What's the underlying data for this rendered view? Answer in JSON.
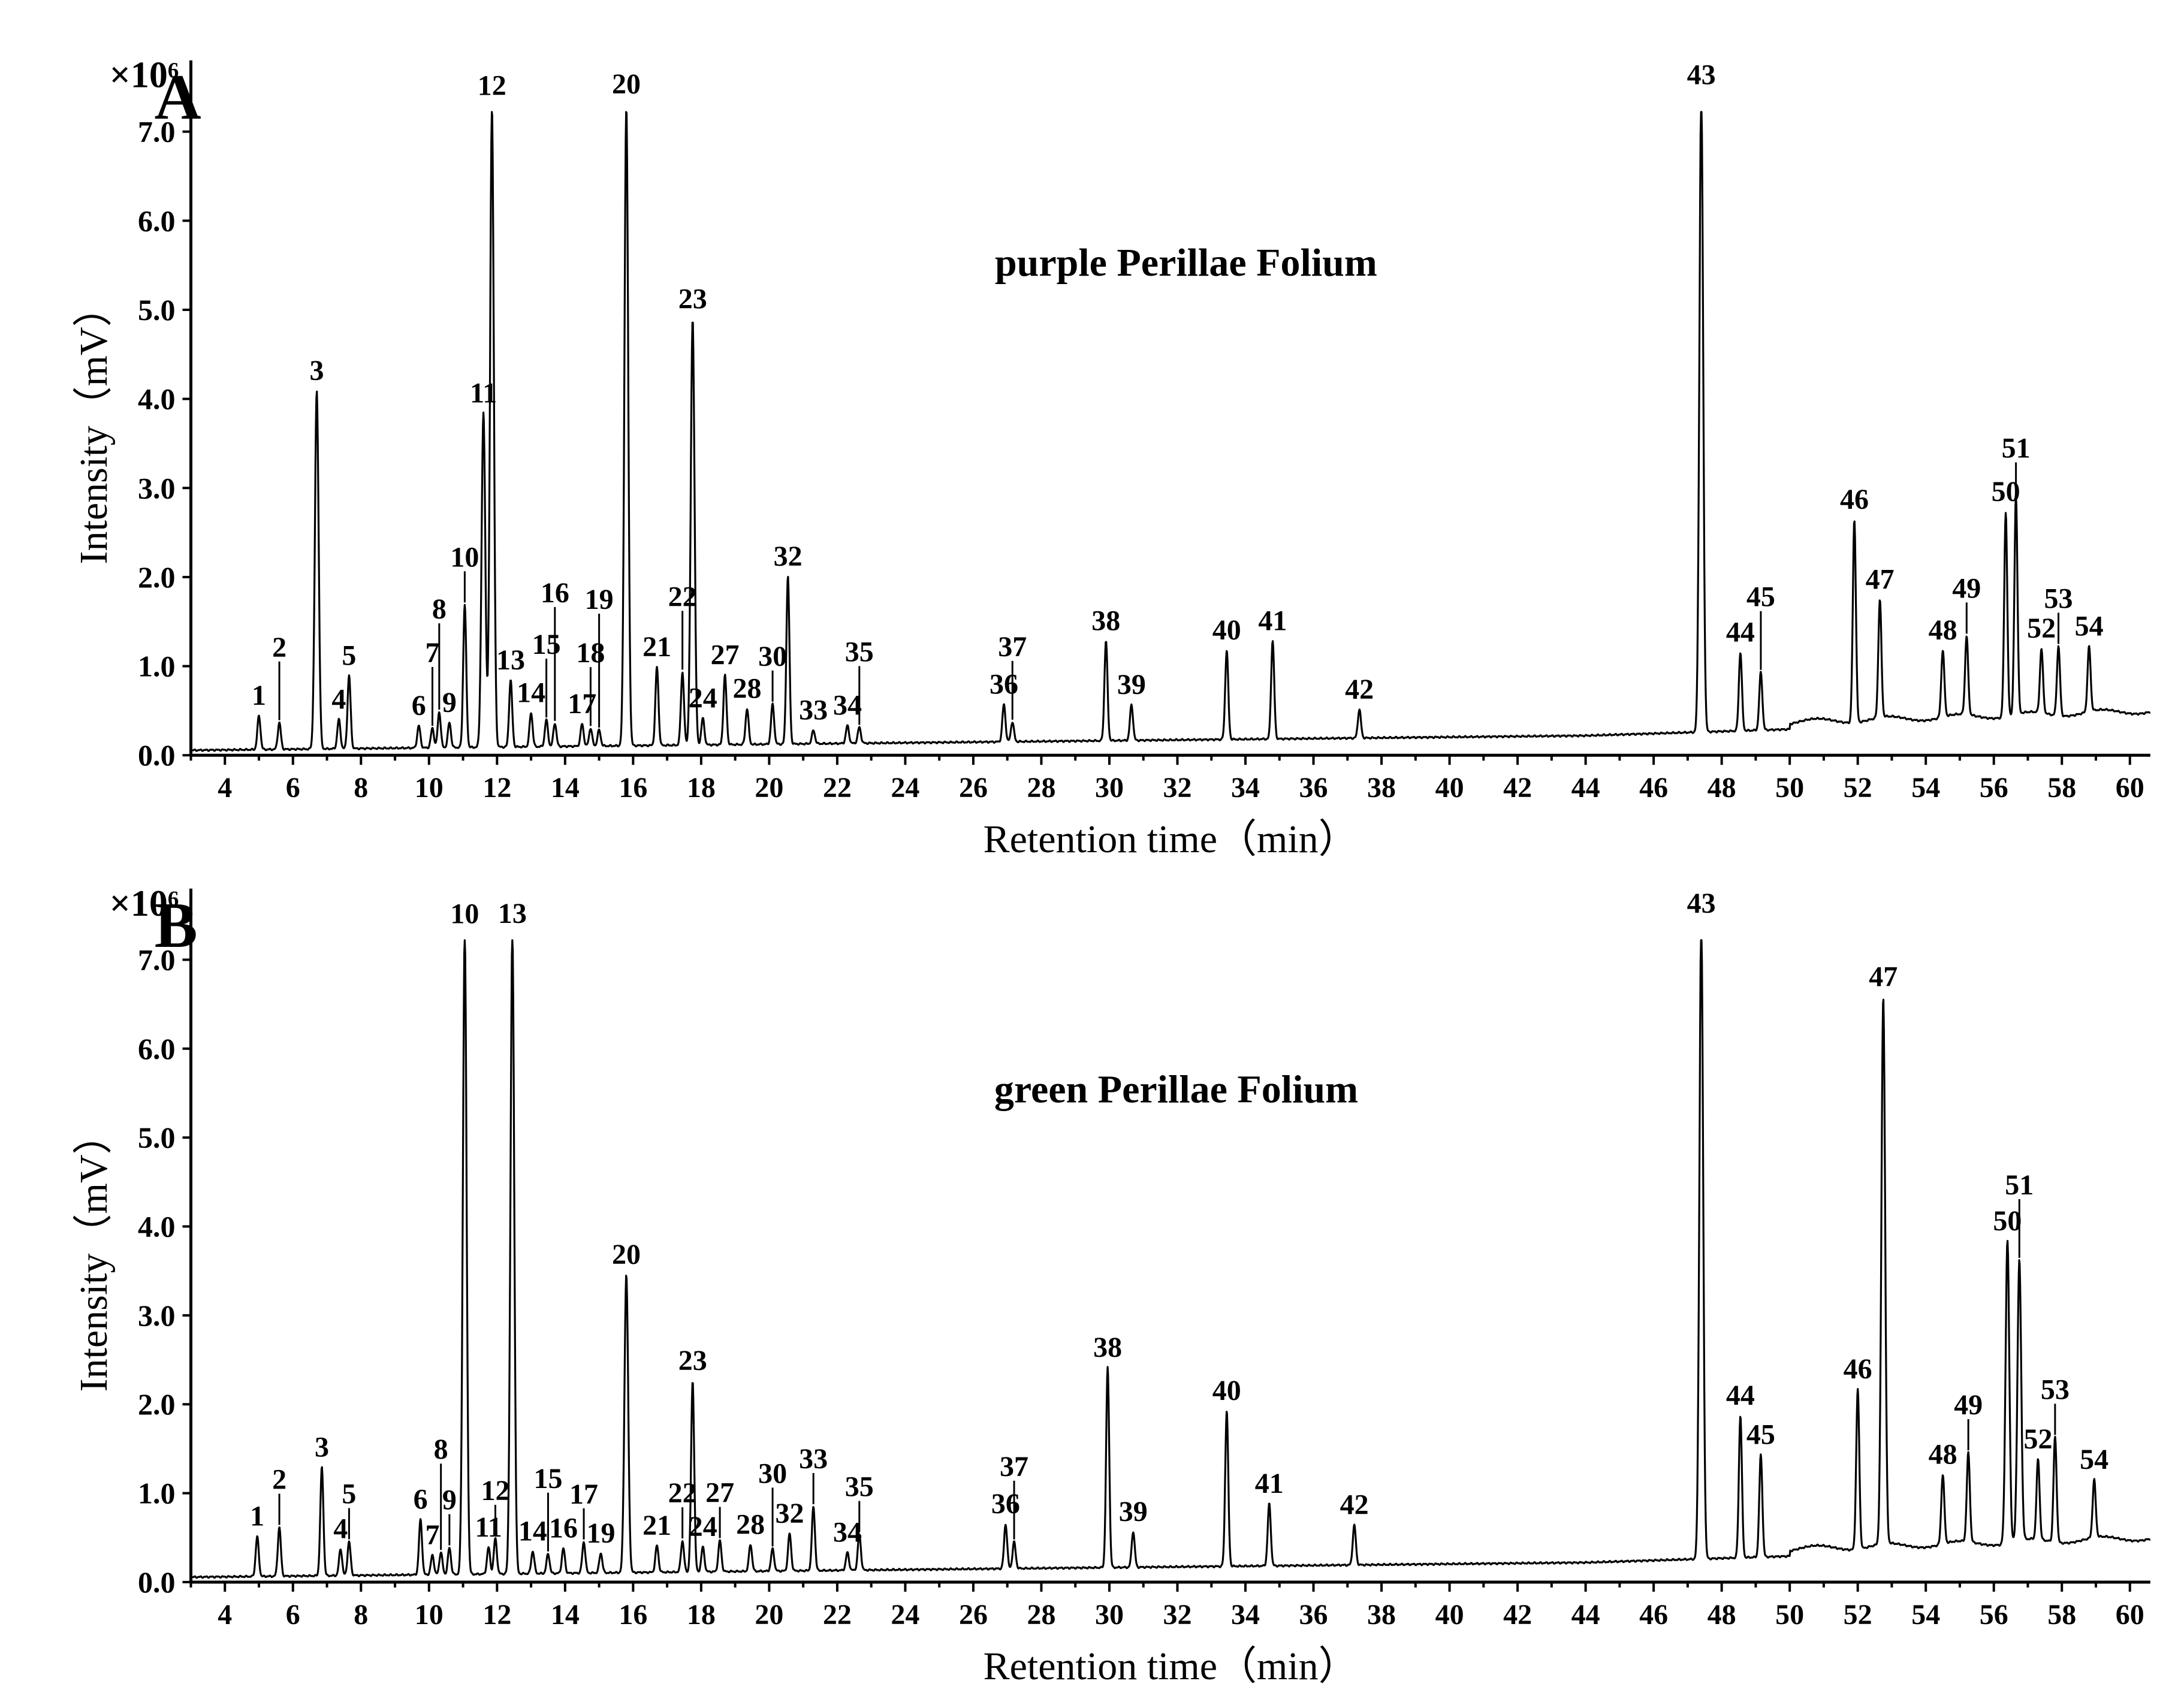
{
  "chart_data": [
    {
      "type": "line",
      "panel": "A",
      "title": "purple Perillae Folium",
      "xlabel": "Retention time（min）",
      "ylabel": "Intensity（mV）",
      "y_multiplier": "×10⁶",
      "xlim": [
        3,
        60.6
      ],
      "ylim": [
        0,
        7.8
      ],
      "xticks": [
        4,
        6,
        8,
        10,
        12,
        14,
        16,
        18,
        20,
        22,
        24,
        26,
        28,
        30,
        32,
        34,
        36,
        38,
        40,
        42,
        44,
        46,
        48,
        50,
        52,
        54,
        56,
        58,
        60
      ],
      "yticks": [
        "0.0",
        "1.0",
        "2.0",
        "3.0",
        "4.0",
        "5.0",
        "6.0",
        "7.0"
      ],
      "peaks": [
        {
          "label": "1",
          "x": 5.0,
          "y": 0.38
        },
        {
          "label": "2",
          "x": 5.6,
          "y": 0.3
        },
        {
          "label": "3",
          "x": 6.7,
          "y": 4.02
        },
        {
          "label": "4",
          "x": 7.35,
          "y": 0.33
        },
        {
          "label": "5",
          "x": 7.65,
          "y": 0.82
        },
        {
          "label": "6",
          "x": 9.7,
          "y": 0.25
        },
        {
          "label": "7",
          "x": 10.1,
          "y": 0.22
        },
        {
          "label": "8",
          "x": 10.3,
          "y": 0.4
        },
        {
          "label": "9",
          "x": 10.6,
          "y": 0.28
        },
        {
          "label": "10",
          "x": 11.05,
          "y": 1.6
        },
        {
          "label": "11",
          "x": 11.6,
          "y": 3.75
        },
        {
          "label": "12",
          "x": 11.85,
          "y": 7.2
        },
        {
          "label": "13",
          "x": 12.4,
          "y": 0.75
        },
        {
          "label": "14",
          "x": 13.0,
          "y": 0.38
        },
        {
          "label": "15",
          "x": 13.45,
          "y": 0.3
        },
        {
          "label": "16",
          "x": 13.7,
          "y": 0.26
        },
        {
          "label": "17",
          "x": 14.5,
          "y": 0.25
        },
        {
          "label": "18",
          "x": 14.75,
          "y": 0.2
        },
        {
          "label": "19",
          "x": 15.0,
          "y": 0.18
        },
        {
          "label": "20",
          "x": 15.8,
          "y": 7.2
        },
        {
          "label": "21",
          "x": 16.7,
          "y": 0.88
        },
        {
          "label": "22",
          "x": 17.45,
          "y": 0.82
        },
        {
          "label": "23",
          "x": 17.75,
          "y": 4.78
        },
        {
          "label": "24",
          "x": 18.05,
          "y": 0.3
        },
        {
          "label": "27",
          "x": 18.7,
          "y": 0.78
        },
        {
          "label": "28",
          "x": 19.35,
          "y": 0.4
        },
        {
          "label": "30",
          "x": 20.1,
          "y": 0.45
        },
        {
          "label": "32",
          "x": 20.55,
          "y": 1.88
        },
        {
          "label": "33",
          "x": 21.3,
          "y": 0.15
        },
        {
          "label": "34",
          "x": 22.3,
          "y": 0.2
        },
        {
          "label": "35",
          "x": 22.65,
          "y": 0.18
        },
        {
          "label": "36",
          "x": 26.9,
          "y": 0.42
        },
        {
          "label": "37",
          "x": 27.15,
          "y": 0.22
        },
        {
          "label": "38",
          "x": 29.9,
          "y": 1.12
        },
        {
          "label": "39",
          "x": 30.65,
          "y": 0.4
        },
        {
          "label": "40",
          "x": 33.45,
          "y": 1.0
        },
        {
          "label": "41",
          "x": 34.8,
          "y": 1.1
        },
        {
          "label": "42",
          "x": 37.35,
          "y": 0.32
        },
        {
          "label": "43",
          "x": 47.4,
          "y": 7.2
        },
        {
          "label": "44",
          "x": 48.55,
          "y": 0.88
        },
        {
          "label": "45",
          "x": 49.15,
          "y": 0.65
        },
        {
          "label": "46",
          "x": 51.9,
          "y": 2.28
        },
        {
          "label": "47",
          "x": 52.65,
          "y": 1.32
        },
        {
          "label": "48",
          "x": 54.5,
          "y": 0.75
        },
        {
          "label": "49",
          "x": 55.2,
          "y": 0.88
        },
        {
          "label": "50",
          "x": 56.35,
          "y": 2.3
        },
        {
          "label": "51",
          "x": 56.65,
          "y": 2.45
        },
        {
          "label": "52",
          "x": 57.4,
          "y": 0.72
        },
        {
          "label": "53",
          "x": 57.9,
          "y": 0.78
        },
        {
          "label": "54",
          "x": 58.8,
          "y": 0.73
        }
      ]
    },
    {
      "type": "line",
      "panel": "B",
      "title": "green Perillae Folium",
      "xlabel": "Retention time（min）",
      "ylabel": "Intensity（mV）",
      "y_multiplier": "×10⁶",
      "xlim": [
        3,
        60.6
      ],
      "ylim": [
        0,
        7.8
      ],
      "xticks": [
        4,
        6,
        8,
        10,
        12,
        14,
        16,
        18,
        20,
        22,
        24,
        26,
        28,
        30,
        32,
        34,
        36,
        38,
        40,
        42,
        44,
        46,
        48,
        50,
        52,
        54,
        56,
        58,
        60
      ],
      "yticks": [
        "0.0",
        "1.0",
        "2.0",
        "3.0",
        "4.0",
        "5.0",
        "6.0",
        "7.0"
      ],
      "peaks": [
        {
          "label": "1",
          "x": 4.95,
          "y": 0.45
        },
        {
          "label": "2",
          "x": 5.6,
          "y": 0.55
        },
        {
          "label": "3",
          "x": 6.85,
          "y": 1.22
        },
        {
          "label": "4",
          "x": 7.4,
          "y": 0.3
        },
        {
          "label": "5",
          "x": 7.65,
          "y": 0.38
        },
        {
          "label": "6",
          "x": 9.75,
          "y": 0.62
        },
        {
          "label": "7",
          "x": 10.1,
          "y": 0.22
        },
        {
          "label": "8",
          "x": 10.35,
          "y": 0.25
        },
        {
          "label": "9",
          "x": 10.6,
          "y": 0.3
        },
        {
          "label": "10",
          "x": 11.05,
          "y": 7.2
        },
        {
          "label": "11",
          "x": 11.75,
          "y": 0.3
        },
        {
          "label": "12",
          "x": 11.95,
          "y": 0.4
        },
        {
          "label": "13",
          "x": 12.45,
          "y": 7.2
        },
        {
          "label": "14",
          "x": 13.05,
          "y": 0.25
        },
        {
          "label": "15",
          "x": 13.5,
          "y": 0.22
        },
        {
          "label": "16",
          "x": 13.95,
          "y": 0.28
        },
        {
          "label": "17",
          "x": 14.55,
          "y": 0.35
        },
        {
          "label": "19",
          "x": 15.05,
          "y": 0.22
        },
        {
          "label": "20",
          "x": 15.8,
          "y": 3.35
        },
        {
          "label": "21",
          "x": 16.7,
          "y": 0.3
        },
        {
          "label": "22",
          "x": 17.45,
          "y": 0.35
        },
        {
          "label": "23",
          "x": 17.75,
          "y": 2.15
        },
        {
          "label": "24",
          "x": 18.05,
          "y": 0.28
        },
        {
          "label": "27",
          "x": 18.55,
          "y": 0.35
        },
        {
          "label": "28",
          "x": 19.45,
          "y": 0.3
        },
        {
          "label": "30",
          "x": 20.1,
          "y": 0.25
        },
        {
          "label": "32",
          "x": 20.6,
          "y": 0.42
        },
        {
          "label": "33",
          "x": 21.3,
          "y": 0.72
        },
        {
          "label": "34",
          "x": 22.3,
          "y": 0.2
        },
        {
          "label": "35",
          "x": 22.65,
          "y": 0.4
        },
        {
          "label": "36",
          "x": 26.95,
          "y": 0.5
        },
        {
          "label": "37",
          "x": 27.2,
          "y": 0.3
        },
        {
          "label": "38",
          "x": 29.95,
          "y": 2.25
        },
        {
          "label": "39",
          "x": 30.7,
          "y": 0.4
        },
        {
          "label": "40",
          "x": 33.45,
          "y": 1.75
        },
        {
          "label": "41",
          "x": 34.7,
          "y": 0.7
        },
        {
          "label": "42",
          "x": 37.2,
          "y": 0.45
        },
        {
          "label": "43",
          "x": 47.4,
          "y": 7.2
        },
        {
          "label": "44",
          "x": 48.55,
          "y": 1.6
        },
        {
          "label": "45",
          "x": 49.15,
          "y": 1.15
        },
        {
          "label": "46",
          "x": 52.0,
          "y": 1.8
        },
        {
          "label": "47",
          "x": 52.75,
          "y": 6.15
        },
        {
          "label": "48",
          "x": 54.5,
          "y": 0.78
        },
        {
          "label": "49",
          "x": 55.25,
          "y": 1.0
        },
        {
          "label": "50",
          "x": 56.4,
          "y": 3.4
        },
        {
          "label": "51",
          "x": 56.75,
          "y": 3.15
        },
        {
          "label": "52",
          "x": 57.3,
          "y": 0.9
        },
        {
          "label": "53",
          "x": 57.8,
          "y": 1.18
        },
        {
          "label": "54",
          "x": 58.95,
          "y": 0.65
        }
      ]
    }
  ]
}
